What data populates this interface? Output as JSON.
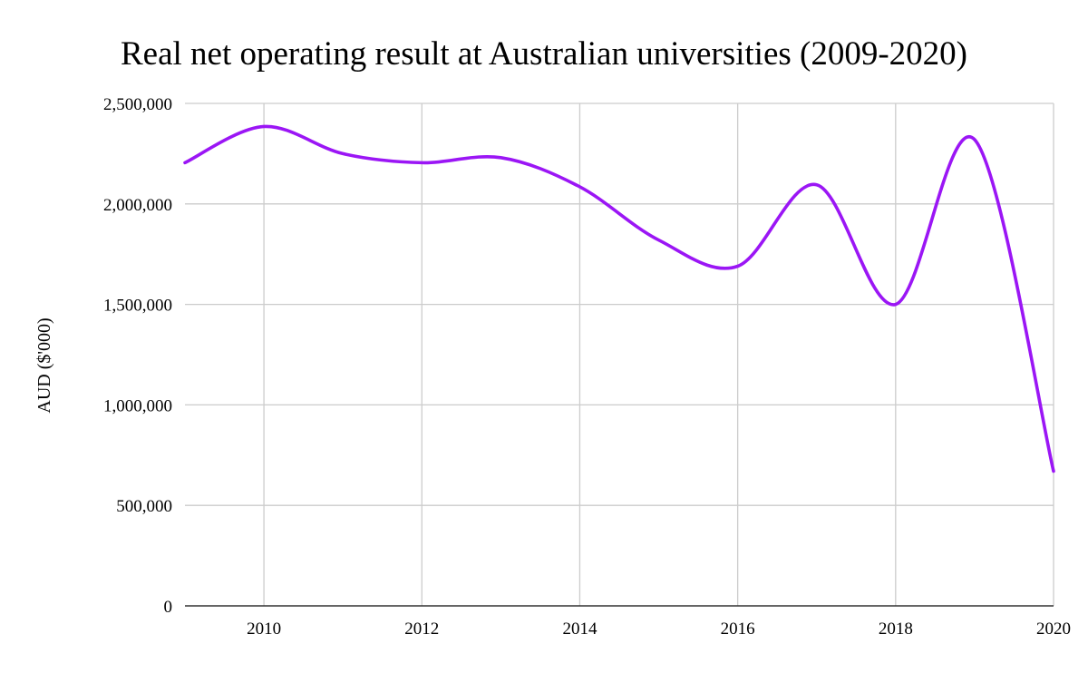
{
  "chart_data": {
    "type": "line",
    "title": "Real net operating result at Australian universities (2009-2020)",
    "xlabel": "",
    "ylabel": "AUD ($'000)",
    "x": [
      2009,
      2010,
      2011,
      2012,
      2013,
      2014,
      2015,
      2016,
      2017,
      2018,
      2019,
      2020
    ],
    "x_ticks": [
      "2010",
      "2012",
      "2014",
      "2016",
      "2018",
      "2020"
    ],
    "y_ticks": [
      "0",
      "500,000",
      "1,000,000",
      "1,500,000",
      "2,000,000",
      "2,500,000"
    ],
    "xlim": [
      2009,
      2020
    ],
    "ylim": [
      0,
      2500000
    ],
    "grid": true,
    "legend": "none",
    "smooth": true,
    "series": [
      {
        "color": "#9b16f5",
        "values": [
          2205000,
          2385000,
          2250000,
          2205000,
          2230000,
          2085000,
          1820000,
          1690000,
          2095000,
          1500000,
          2320000,
          670000
        ]
      }
    ]
  }
}
